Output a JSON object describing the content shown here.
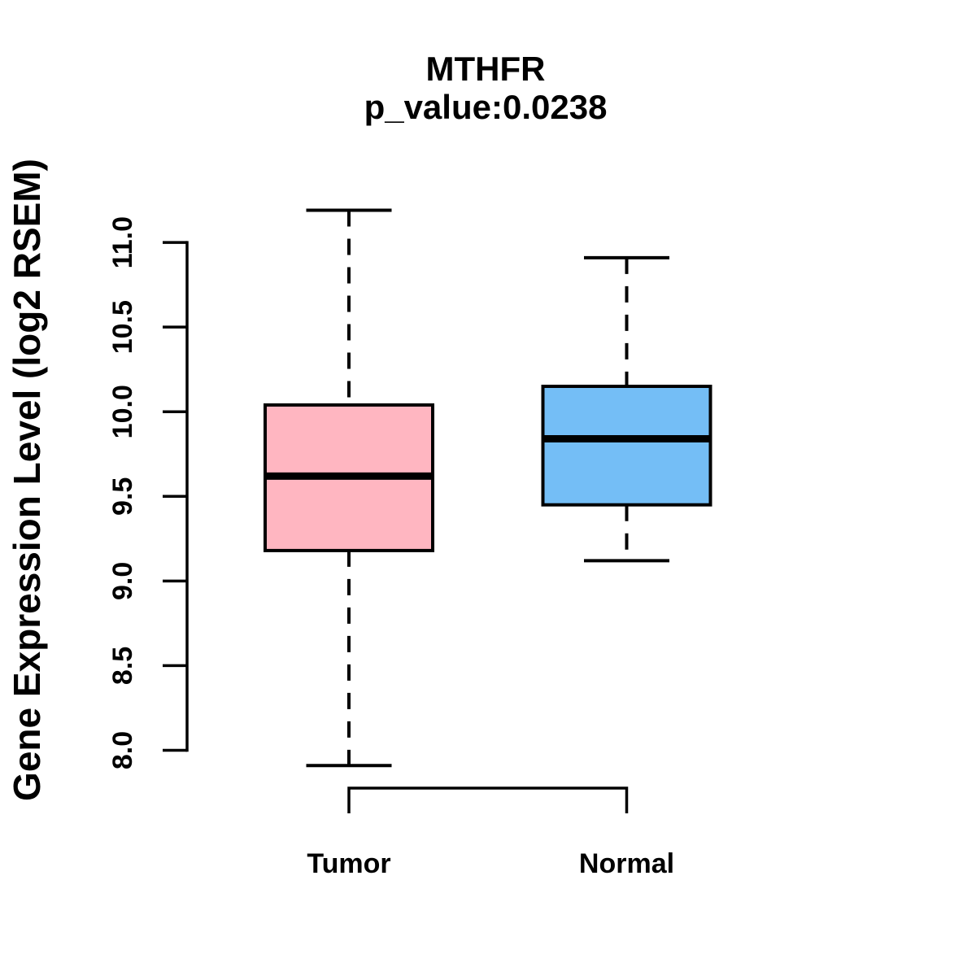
{
  "chart_data": {
    "type": "boxplot",
    "title": "MTHFR",
    "subtitle": "p_value:0.0238",
    "ylabel": "Gene Expression Level (log2 RSEM)",
    "categories": [
      "Tumor",
      "Normal"
    ],
    "y_ticks": [
      "8.0",
      "8.5",
      "9.0",
      "9.5",
      "10.0",
      "10.5",
      "11.0"
    ],
    "ylim": [
      8.0,
      11.0
    ],
    "grid": "off",
    "legend": "none",
    "axis_color": "#000000",
    "series": [
      {
        "name": "Tumor",
        "box_fill": "#FFB6C1",
        "whisker_low": 7.91,
        "q1": 9.18,
        "median": 9.62,
        "q3": 10.04,
        "whisker_high": 11.19
      },
      {
        "name": "Normal",
        "box_fill": "#74BEF6",
        "whisker_low": 9.12,
        "q1": 9.45,
        "median": 9.84,
        "q3": 10.15,
        "whisker_high": 10.91
      }
    ]
  }
}
